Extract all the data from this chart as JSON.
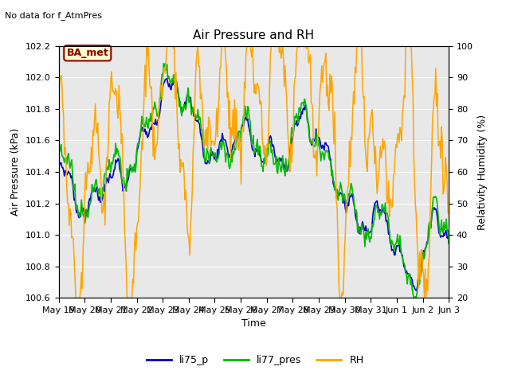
{
  "title": "Air Pressure and RH",
  "top_left_text": "No data for f_AtmPres",
  "box_label": "BA_met",
  "xlabel": "Time",
  "ylabel_left": "Air Pressure (kPa)",
  "ylabel_right": "Relativity Humidity (%)",
  "ylim_left": [
    100.6,
    102.2
  ],
  "ylim_right": [
    20,
    100
  ],
  "yticks_left": [
    100.6,
    100.8,
    101.0,
    101.2,
    101.4,
    101.6,
    101.8,
    102.0,
    102.2
  ],
  "yticks_right": [
    20,
    30,
    40,
    50,
    60,
    70,
    80,
    90,
    100
  ],
  "xtick_labels": [
    "May 19",
    "May 20",
    "May 21",
    "May 22",
    "May 23",
    "May 24",
    "May 25",
    "May 26",
    "May 27",
    "May 28",
    "May 29",
    "May 30",
    "May 31",
    "Jun 1",
    "Jun 2",
    "Jun 3"
  ],
  "color_li75": "#0000cc",
  "color_li77": "#00bb00",
  "color_rh": "#ffa500",
  "bg_color": "#e8e8e8",
  "legend_entries": [
    "li75_p",
    "li77_pres",
    "RH"
  ],
  "n_points": 480
}
